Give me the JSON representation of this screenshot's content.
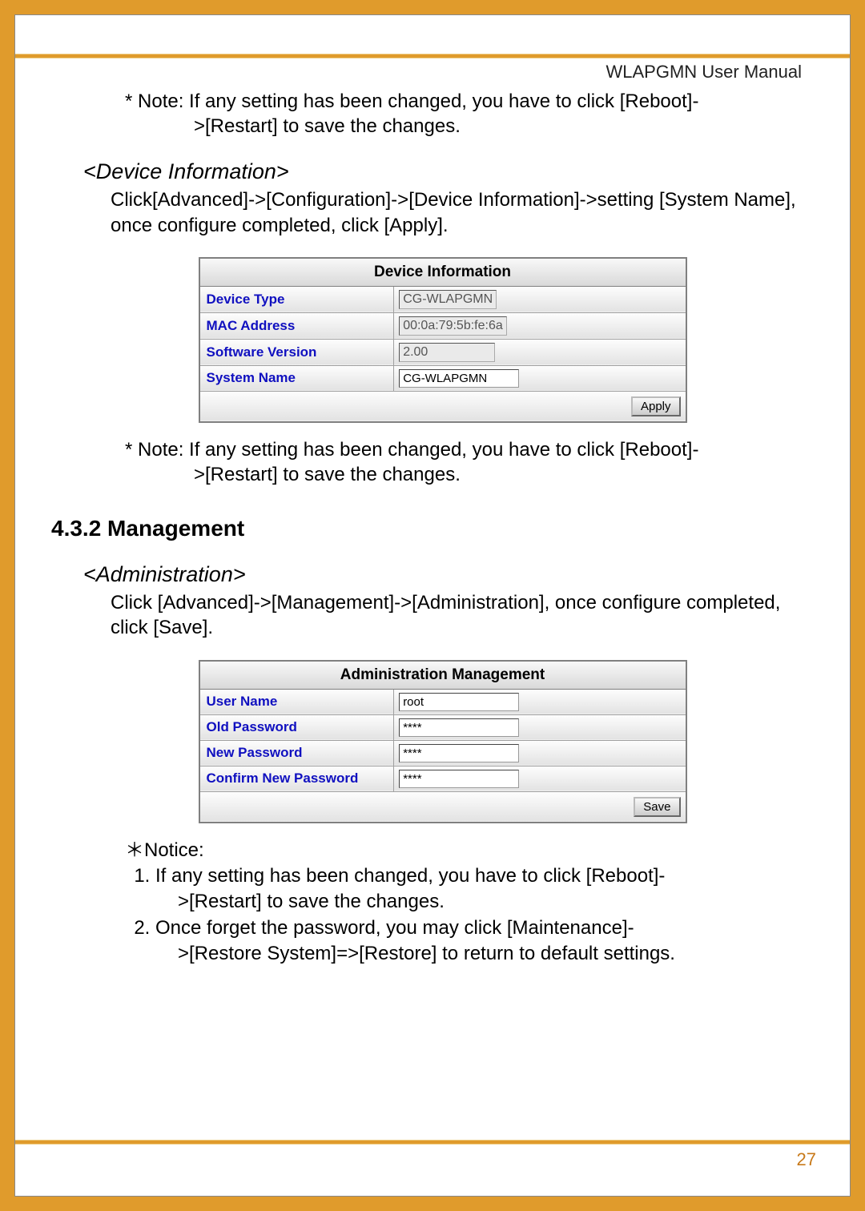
{
  "header": {
    "title": "WLAPGMN User Manual"
  },
  "note1": {
    "line1": "* Note: If any setting has been changed, you have to click [Reboot]-",
    "line2": ">[Restart] to save the changes."
  },
  "deviceInfo": {
    "sectionTitle": "<Device Information>",
    "body": "Click[Advanced]->[Configuration]->[Device Information]->setting [System Name], once configure completed, click [Apply].",
    "table": {
      "title": "Device Information",
      "rows": {
        "deviceType": {
          "label": "Device Type",
          "value": "CG-WLAPGMN"
        },
        "macAddress": {
          "label": "MAC Address",
          "value": "00:0a:79:5b:fe:6a"
        },
        "softwareVersion": {
          "label": "Software Version",
          "value": "2.00"
        },
        "systemName": {
          "label": "System Name",
          "value": "CG-WLAPGMN"
        }
      },
      "button": "Apply"
    }
  },
  "note2": {
    "line1": "* Note: If any setting has been changed, you have to click [Reboot]-",
    "line2": ">[Restart] to save the changes."
  },
  "mgmtHeading": "4.3.2 Management",
  "admin": {
    "sectionTitle": "<Administration>",
    "body": "Click [Advanced]->[Management]->[Administration], once configure completed, click [Save].",
    "table": {
      "title": "Administration Management",
      "rows": {
        "userName": {
          "label": "User Name",
          "value": "root"
        },
        "oldPassword": {
          "label": "Old Password",
          "value": "****"
        },
        "newPassword": {
          "label": "New Password",
          "value": "****"
        },
        "confirmNew": {
          "label": "Confirm New Password",
          "value": "****"
        }
      },
      "button": "Save"
    }
  },
  "notice": {
    "head": "＊Notice:",
    "item1a": "If any setting has been changed, you have to click [Reboot]-",
    "item1b": ">[Restart] to save the changes.",
    "item2a": "Once forget the password, you may click [Maintenance]-",
    "item2b": ">[Restore System]=>[Restore] to return to default settings."
  },
  "pageNumber": "27",
  "colors": {
    "pageBg": "#e09b2c",
    "labelBlue": "#1010c0",
    "pageNum": "#c87a1a"
  }
}
